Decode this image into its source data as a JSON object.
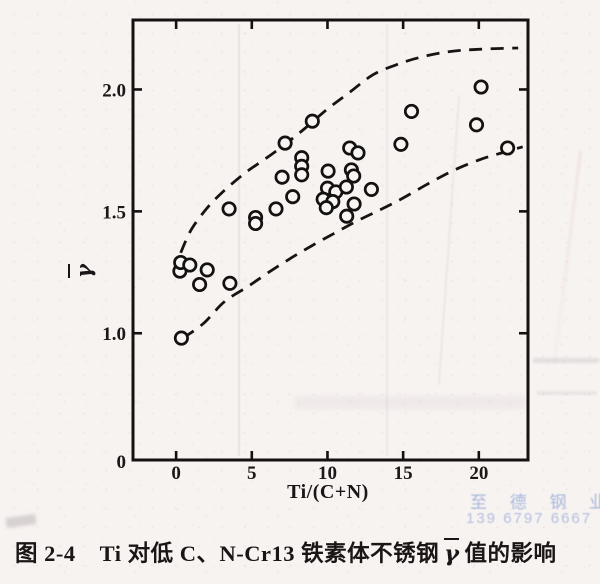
{
  "figure": {
    "caption": {
      "fig_label": "图 2-4",
      "text_before_gamma": "Ti 对低 C、N-Cr13 铁素体不锈钢",
      "gamma": "γ",
      "text_after_gamma": "值的影响"
    },
    "watermark": {
      "line1": "至 德 钢 业",
      "line2": "139 6797 6667"
    }
  },
  "chart_data": {
    "type": "scatter",
    "title": "图 2-4 Ti 对低 C、N-Cr13 铁素体不锈钢 γ̄ 值的影响",
    "xlabel": "Ti/(C+N)",
    "ylabel": "γ̄",
    "ylabel_display": "γ",
    "grid": false,
    "legend": "none",
    "marker": {
      "shape": "open-circle",
      "radius_px": 6.2
    },
    "xlim": [
      -2.85,
      23.25
    ],
    "ylim": [
      0.48,
      2.285
    ],
    "x_ticks": [
      {
        "v": 0,
        "label": "0"
      },
      {
        "v": 5,
        "label": "5"
      },
      {
        "v": 10,
        "label": "10"
      },
      {
        "v": 15,
        "label": "15"
      },
      {
        "v": 20,
        "label": "20"
      }
    ],
    "y_ticks": [
      {
        "v": 1.0,
        "label": "1.0"
      },
      {
        "v": 1.5,
        "label": "1.5"
      },
      {
        "v": 2.0,
        "label": "2.0"
      }
    ],
    "y_origin_label": "0",
    "points": [
      [
        0.35,
        0.98
      ],
      [
        0.25,
        1.255
      ],
      [
        0.3,
        1.29
      ],
      [
        0.9,
        1.28
      ],
      [
        1.55,
        1.2
      ],
      [
        2.05,
        1.26
      ],
      [
        3.55,
        1.205
      ],
      [
        3.5,
        1.51
      ],
      [
        5.25,
        1.475
      ],
      [
        5.25,
        1.45
      ],
      [
        6.6,
        1.51
      ],
      [
        7.0,
        1.64
      ],
      [
        7.2,
        1.78
      ],
      [
        7.7,
        1.56
      ],
      [
        8.3,
        1.72
      ],
      [
        8.3,
        1.685
      ],
      [
        8.3,
        1.65
      ],
      [
        9.0,
        1.87
      ],
      [
        10.04,
        1.665
      ],
      [
        10.0,
        1.595
      ],
      [
        10.55,
        1.58
      ],
      [
        11.25,
        1.6
      ],
      [
        9.72,
        1.55
      ],
      [
        10.35,
        1.54
      ],
      [
        9.92,
        1.515
      ],
      [
        11.76,
        1.53
      ],
      [
        11.27,
        1.48
      ],
      [
        11.47,
        1.76
      ],
      [
        12.02,
        1.74
      ],
      [
        11.58,
        1.67
      ],
      [
        11.73,
        1.645
      ],
      [
        12.9,
        1.59
      ],
      [
        14.85,
        1.775
      ],
      [
        15.55,
        1.91
      ],
      [
        19.85,
        1.855
      ],
      [
        20.15,
        2.01
      ],
      [
        21.9,
        1.76
      ]
    ],
    "envelopes": {
      "style": "dashed",
      "upper": [
        [
          0.3,
          1.33
        ],
        [
          1.0,
          1.425
        ],
        [
          2.0,
          1.51
        ],
        [
          3.0,
          1.575
        ],
        [
          4.5,
          1.655
        ],
        [
          6.0,
          1.72
        ],
        [
          7.2,
          1.775
        ],
        [
          8.5,
          1.84
        ],
        [
          10.0,
          1.92
        ],
        [
          11.5,
          1.99
        ],
        [
          13.0,
          2.06
        ],
        [
          14.5,
          2.1
        ],
        [
          16.0,
          2.13
        ],
        [
          18.0,
          2.155
        ],
        [
          20.0,
          2.165
        ],
        [
          22.6,
          2.17
        ]
      ],
      "lower": [
        [
          0.45,
          0.98
        ],
        [
          1.8,
          1.04
        ],
        [
          3.2,
          1.13
        ],
        [
          4.7,
          1.19
        ],
        [
          6.0,
          1.245
        ],
        [
          7.5,
          1.305
        ],
        [
          9.0,
          1.36
        ],
        [
          10.6,
          1.415
        ],
        [
          12.1,
          1.465
        ],
        [
          13.6,
          1.51
        ],
        [
          15.0,
          1.555
        ],
        [
          16.7,
          1.615
        ],
        [
          18.4,
          1.67
        ],
        [
          20.2,
          1.715
        ],
        [
          21.8,
          1.745
        ],
        [
          22.9,
          1.765
        ]
      ]
    },
    "colors": {
      "ink": "#141111",
      "paper": "#f7f3f1",
      "watermark_blue": "#7490cd"
    }
  }
}
